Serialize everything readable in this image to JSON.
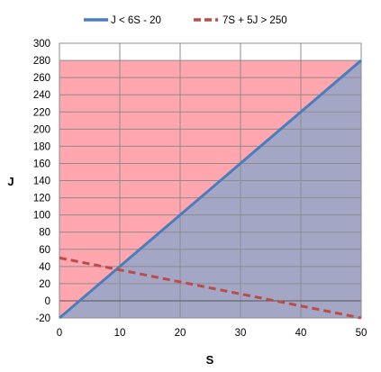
{
  "chart_data": {
    "type": "line",
    "xlabel": "S",
    "ylabel": "J",
    "xlim": [
      0,
      50
    ],
    "ylim": [
      -20,
      300
    ],
    "xticks": [
      0,
      10,
      20,
      30,
      40,
      50
    ],
    "yticks": [
      -20,
      0,
      20,
      40,
      60,
      80,
      100,
      120,
      140,
      160,
      180,
      200,
      220,
      240,
      260,
      280,
      300
    ],
    "grid": true,
    "legend_position": "top",
    "series": [
      {
        "name": "J < 6S - 20",
        "style": "solid",
        "color": "#4a7ebb",
        "x": [
          0,
          50
        ],
        "y": [
          -20,
          280
        ]
      },
      {
        "name": "7S + 5J > 250",
        "style": "dashed",
        "color": "#be4b48",
        "x": [
          0,
          50
        ],
        "y": [
          50,
          -20
        ]
      }
    ],
    "regions": [
      {
        "name": "red-shaded-area",
        "color": "#ff6b78",
        "opacity": 0.6,
        "top": 280,
        "bottom": -20
      },
      {
        "name": "blue-shaded-area",
        "color": "#7ea6d0",
        "opacity": 0.7,
        "below_series": "J < 6S - 20",
        "above_min": -20
      }
    ]
  }
}
